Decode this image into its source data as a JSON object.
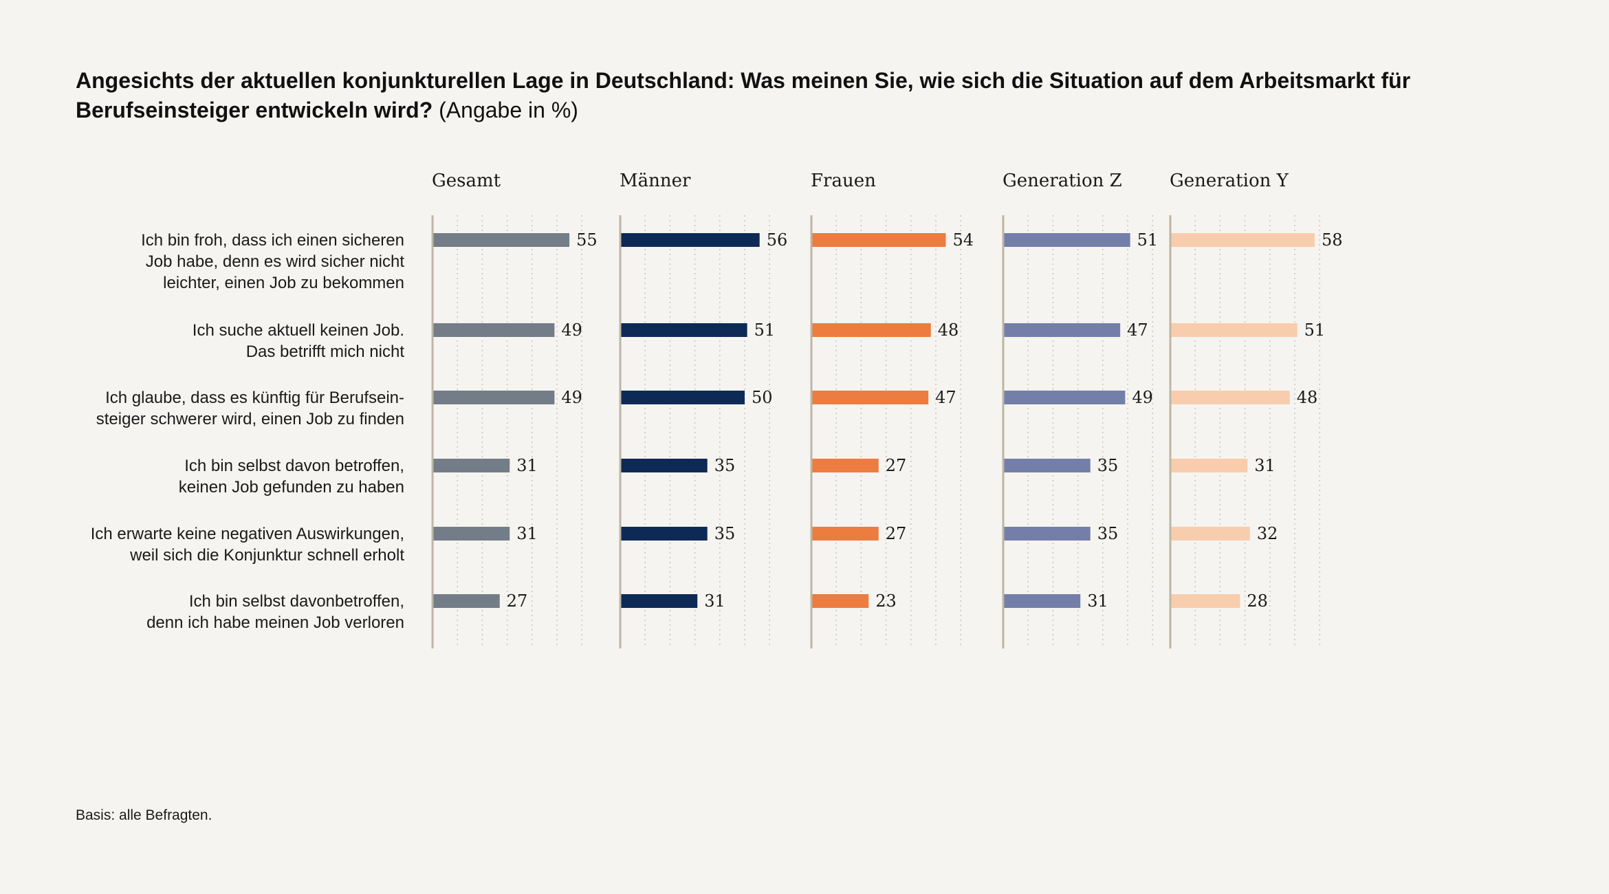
{
  "title": {
    "main": "Angesichts der aktuellen konjunkturellen Lage in Deutschland: Was meinen Sie, wie sich die Situation auf dem Arbeitsmarkt für Berufseinsteiger entwickeln wird?",
    "unit": "(Angabe in %)"
  },
  "footnote": "Basis: alle Befragten.",
  "chart_data": {
    "type": "bar",
    "orientation": "horizontal",
    "layout": "small-multiples",
    "title": "Angesichts der aktuellen konjunkturellen Lage in Deutschland: Was meinen Sie, wie sich die Situation auf dem Arbeitsmarkt für Berufseinsteiger entwickeln wird? (Angabe in %)",
    "unit": "%",
    "xlim": [
      0,
      60
    ],
    "grid_step": 10,
    "grid": true,
    "categories": [
      [
        "Ich bin froh, dass ich einen sicheren",
        "Job habe, denn es wird sicher nicht",
        "leichter, einen Job zu bekommen"
      ],
      [
        "Ich suche aktuell keinen Job.",
        "Das betrifft mich nicht"
      ],
      [
        "Ich glaube, dass es künftig für Berufsein-",
        "steiger schwerer wird, einen Job zu finden"
      ],
      [
        "Ich bin selbst davon betroffen,",
        "keinen Job gefunden zu haben"
      ],
      [
        "Ich erwarte keine negativen Auswirkungen,",
        "weil sich die Konjunktur schnell erholt"
      ],
      [
        "Ich bin selbst davonbetroffen,",
        "denn ich habe meinen Job verloren"
      ]
    ],
    "series": [
      {
        "name": "Gesamt",
        "color": "#737d87",
        "values": [
          55,
          49,
          49,
          31,
          31,
          27
        ]
      },
      {
        "name": "Männer",
        "color": "#0d2a57",
        "values": [
          56,
          51,
          50,
          35,
          35,
          31
        ]
      },
      {
        "name": "Frauen",
        "color": "#ec7c40",
        "values": [
          54,
          48,
          47,
          27,
          27,
          23
        ]
      },
      {
        "name": "Generation Z",
        "color": "#737fa8",
        "values": [
          51,
          47,
          49,
          35,
          35,
          31
        ]
      },
      {
        "name": "Generation Y",
        "color": "#f8cdad",
        "values": [
          58,
          51,
          48,
          31,
          32,
          28
        ]
      }
    ],
    "colors": {
      "background": "#f6f4f0",
      "axis": "#bdb6a6",
      "gridline": "#c9c4b9"
    }
  }
}
